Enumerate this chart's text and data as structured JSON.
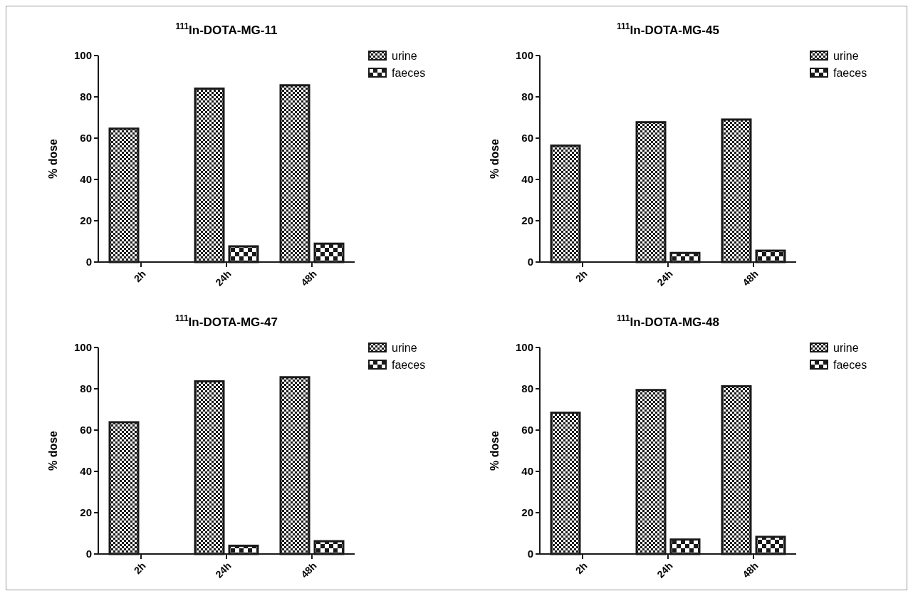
{
  "chart_data": [
    {
      "type": "bar",
      "title": "$^{111}$In-DOTA-MG-11",
      "ylabel": "% dose",
      "categories": [
        "2h",
        "24h",
        "48h"
      ],
      "series": [
        {
          "name": "urine",
          "color": "#1a1a1a",
          "values": [
            64.6,
            84,
            85.6
          ]
        },
        {
          "name": "faeces",
          "color": "#1a1a1a",
          "values": [
            null,
            7.6,
            8.9
          ]
        }
      ],
      "ylim": [
        0,
        100
      ],
      "yticks": [
        0,
        20,
        40,
        60,
        80,
        100
      ],
      "legend": "top right"
    },
    {
      "type": "bar",
      "title": "$^{111}$In-DOTA-MG-45",
      "ylabel": "% dose",
      "categories": [
        "2h",
        "24h",
        "48h"
      ],
      "series": [
        {
          "name": "urine",
          "color": "#1a1a1a",
          "values": [
            56.4,
            67.7,
            69
          ]
        },
        {
          "name": "faeces",
          "color": "#1a1a1a",
          "values": [
            null,
            4.4,
            5.5
          ]
        }
      ],
      "ylim": [
        0,
        100
      ],
      "yticks": [
        0,
        20,
        40,
        60,
        80,
        100
      ],
      "legend": "top right"
    },
    {
      "type": "bar",
      "title": "$^{111}$In-DOTA-MG-47",
      "ylabel": "% dose",
      "categories": [
        "2h",
        "24h",
        "48h"
      ],
      "series": [
        {
          "name": "urine",
          "color": "#1a1a1a",
          "values": [
            63.8,
            83.6,
            85.6
          ]
        },
        {
          "name": "faeces",
          "color": "#1a1a1a",
          "values": [
            null,
            4,
            6.2
          ]
        }
      ],
      "ylim": [
        0,
        100
      ],
      "yticks": [
        0,
        20,
        40,
        60,
        80,
        100
      ],
      "legend": "top right"
    },
    {
      "type": "bar",
      "title": "$^{111}$In-DOTA-MG-48",
      "ylabel": "% dose",
      "categories": [
        "2h",
        "24h",
        "48h"
      ],
      "series": [
        {
          "name": "urine",
          "color": "#1a1a1a",
          "values": [
            68.4,
            79.4,
            81.2
          ]
        },
        {
          "name": "faeces",
          "color": "#1a1a1a",
          "values": [
            null,
            7,
            8.3
          ]
        }
      ],
      "ylim": [
        0,
        100
      ],
      "yticks": [
        0,
        20,
        40,
        60,
        80,
        100
      ],
      "legend": "top right"
    }
  ]
}
